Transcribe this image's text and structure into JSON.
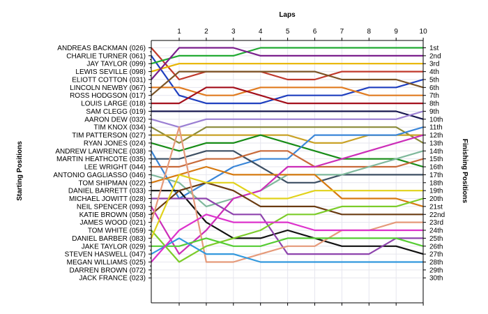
{
  "chart_data": {
    "type": "line",
    "title": "",
    "xlabel": "Laps",
    "ylabel_left": "Starting Positions",
    "ylabel_right": "Finishing Positions",
    "x": [
      0,
      1,
      2,
      3,
      4,
      5,
      6,
      7,
      8,
      9,
      10
    ],
    "x_tick_labels": [
      "1",
      "2",
      "3",
      "4",
      "5",
      "6",
      "7",
      "8",
      "9",
      "10"
    ],
    "ylim": [
      1,
      30
    ],
    "y_inverted": true,
    "finishing_labels": [
      "1st",
      "2nd",
      "3rd",
      "4th",
      "5th",
      "6th",
      "7th",
      "8th",
      "9th",
      "10th",
      "11th",
      "12th",
      "13th",
      "14th",
      "15th",
      "16th",
      "17th",
      "18th",
      "19th",
      "20th",
      "21st",
      "22nd",
      "23rd",
      "24th",
      "25th",
      "26th",
      "27th",
      "28th",
      "29th",
      "30th"
    ],
    "grid": true,
    "series": [
      {
        "name": "ANDREAS BACKMAN (026)",
        "color": "#c0392b",
        "values": [
          1,
          5,
          4,
          4,
          4,
          5,
          5,
          4,
          4,
          4,
          4
        ]
      },
      {
        "name": "CHARLIE TURNER (061)",
        "color": "#1f3fbf",
        "values": [
          2,
          7,
          8,
          8,
          8,
          7,
          7,
          7,
          6,
          6,
          5
        ]
      },
      {
        "name": "JAY TAYLOR (099)",
        "color": "#22aa33",
        "values": [
          3,
          2,
          2,
          2,
          1,
          1,
          1,
          1,
          1,
          1,
          1
        ]
      },
      {
        "name": "LEWIS SEVILLE (098)",
        "color": "#e8b500",
        "values": [
          4,
          3,
          3,
          3,
          3,
          3,
          3,
          3,
          3,
          3,
          3
        ]
      },
      {
        "name": "ELIOTT COTTON (031)",
        "color": "#7a1f8c",
        "values": [
          5,
          1,
          1,
          1,
          2,
          2,
          2,
          2,
          2,
          2,
          2
        ]
      },
      {
        "name": "LINCOLN NEWBY (067)",
        "color": "#e07b20",
        "values": [
          6,
          6,
          7,
          7,
          6,
          6,
          6,
          6,
          7,
          7,
          7
        ]
      },
      {
        "name": "ROSS HODGSON (017)",
        "color": "#7b5426",
        "values": [
          7,
          4,
          4,
          4,
          4,
          4,
          4,
          5,
          5,
          5,
          6
        ]
      },
      {
        "name": "LOUIS LARGE (018)",
        "color": "#a30f1b",
        "values": [
          8,
          8,
          6,
          6,
          7,
          8,
          8,
          8,
          8,
          8,
          8
        ]
      },
      {
        "name": "SAM CLEGG (019)",
        "color": "#17174f",
        "values": [
          9,
          9,
          9,
          9,
          9,
          9,
          9,
          9,
          9,
          9,
          10
        ]
      },
      {
        "name": "AARON DEW (032)",
        "color": "#9b7fd3",
        "values": [
          10,
          11,
          10,
          10,
          10,
          10,
          10,
          10,
          10,
          10,
          9
        ]
      },
      {
        "name": "TIM KNOX (034)",
        "color": "#8a8a3a",
        "values": [
          11,
          13,
          11,
          11,
          11,
          11,
          11,
          11,
          11,
          11,
          13
        ]
      },
      {
        "name": "TIM PATTERSON (027)",
        "color": "#c9a227",
        "values": [
          12,
          12,
          12,
          12,
          12,
          12,
          13,
          13,
          12,
          12,
          12
        ]
      },
      {
        "name": "RYAN JONES (024)",
        "color": "#178c17",
        "values": [
          13,
          14,
          13,
          13,
          12,
          13,
          14,
          15,
          15,
          15,
          16
        ]
      },
      {
        "name": "ANDREW LAWRENCE (038)",
        "color": "#3a86d8",
        "values": [
          14,
          20,
          18,
          16,
          15,
          15,
          12,
          12,
          12,
          12,
          11
        ]
      },
      {
        "name": "MARTIN HEATHCOTE (035)",
        "color": "#3d4f63",
        "values": [
          15,
          15,
          14,
          14,
          16,
          18,
          18,
          17,
          17,
          17,
          17
        ]
      },
      {
        "name": "LEE WRIGHT (044)",
        "color": "#c86a3a",
        "values": [
          16,
          16,
          15,
          15,
          14,
          14,
          16,
          16,
          16,
          16,
          15
        ]
      },
      {
        "name": "ANTONIO GAGLIASSO (046)",
        "color": "#7fb89c",
        "values": [
          17,
          18,
          21,
          20,
          19,
          17,
          17,
          17,
          16,
          15,
          14
        ]
      },
      {
        "name": "TOM SHIPMAN (022)",
        "color": "#d67a10",
        "values": [
          18,
          17,
          16,
          17,
          17,
          17,
          17,
          20,
          20,
          20,
          21
        ]
      },
      {
        "name": "DANIEL BARRETT (033)",
        "color": "#111111",
        "values": [
          19,
          19,
          23,
          25,
          25,
          24,
          25,
          26,
          26,
          26,
          27
        ]
      },
      {
        "name": "MICHAEL JOWITT (028)",
        "color": "#8e44ad",
        "values": [
          20,
          20,
          20,
          22,
          22,
          27,
          27,
          27,
          27,
          25,
          25
        ]
      },
      {
        "name": "NEIL SPENCER (093)",
        "color": "#cc2eb8",
        "values": [
          21,
          27,
          24,
          20,
          19,
          16,
          16,
          15,
          14,
          13,
          12
        ]
      },
      {
        "name": "KATIE BROWN (058)",
        "color": "#6a3b12",
        "values": [
          22,
          19,
          18,
          19,
          21,
          21,
          21,
          22,
          22,
          22,
          22
        ]
      },
      {
        "name": "JAMES WOOD (021)",
        "color": "#e59a7a",
        "values": [
          23,
          11,
          28,
          28,
          27,
          26,
          26,
          24,
          24,
          23,
          23
        ]
      },
      {
        "name": "TOM WHITE (059)",
        "color": "#7ccc2a",
        "values": [
          24,
          28,
          26,
          25,
          24,
          22,
          22,
          21,
          21,
          21,
          20
        ]
      },
      {
        "name": "DANIEL BARBER (083)",
        "color": "#e1d21b",
        "values": [
          25,
          17,
          18,
          18,
          20,
          20,
          19,
          19,
          19,
          19,
          19
        ]
      },
      {
        "name": "JAKE TAYLOR (029)",
        "color": "#55cc33",
        "values": [
          26,
          26,
          25,
          26,
          26,
          25,
          25,
          25,
          25,
          25,
          26
        ]
      },
      {
        "name": "STEVEN HASWELL (047)",
        "color": "#3399dd",
        "values": [
          27,
          25,
          27,
          27,
          28,
          28,
          28,
          28,
          28,
          28,
          28
        ]
      },
      {
        "name": "MEGAN WILLIAMS (025)",
        "color": "#dd33cc",
        "values": [
          28,
          24,
          22,
          23,
          23,
          23,
          24,
          24,
          24,
          24,
          24
        ]
      }
    ],
    "extra_starting_labels": [
      "DARREN BROWN (072)",
      "JACK FRANCE (023)"
    ]
  }
}
